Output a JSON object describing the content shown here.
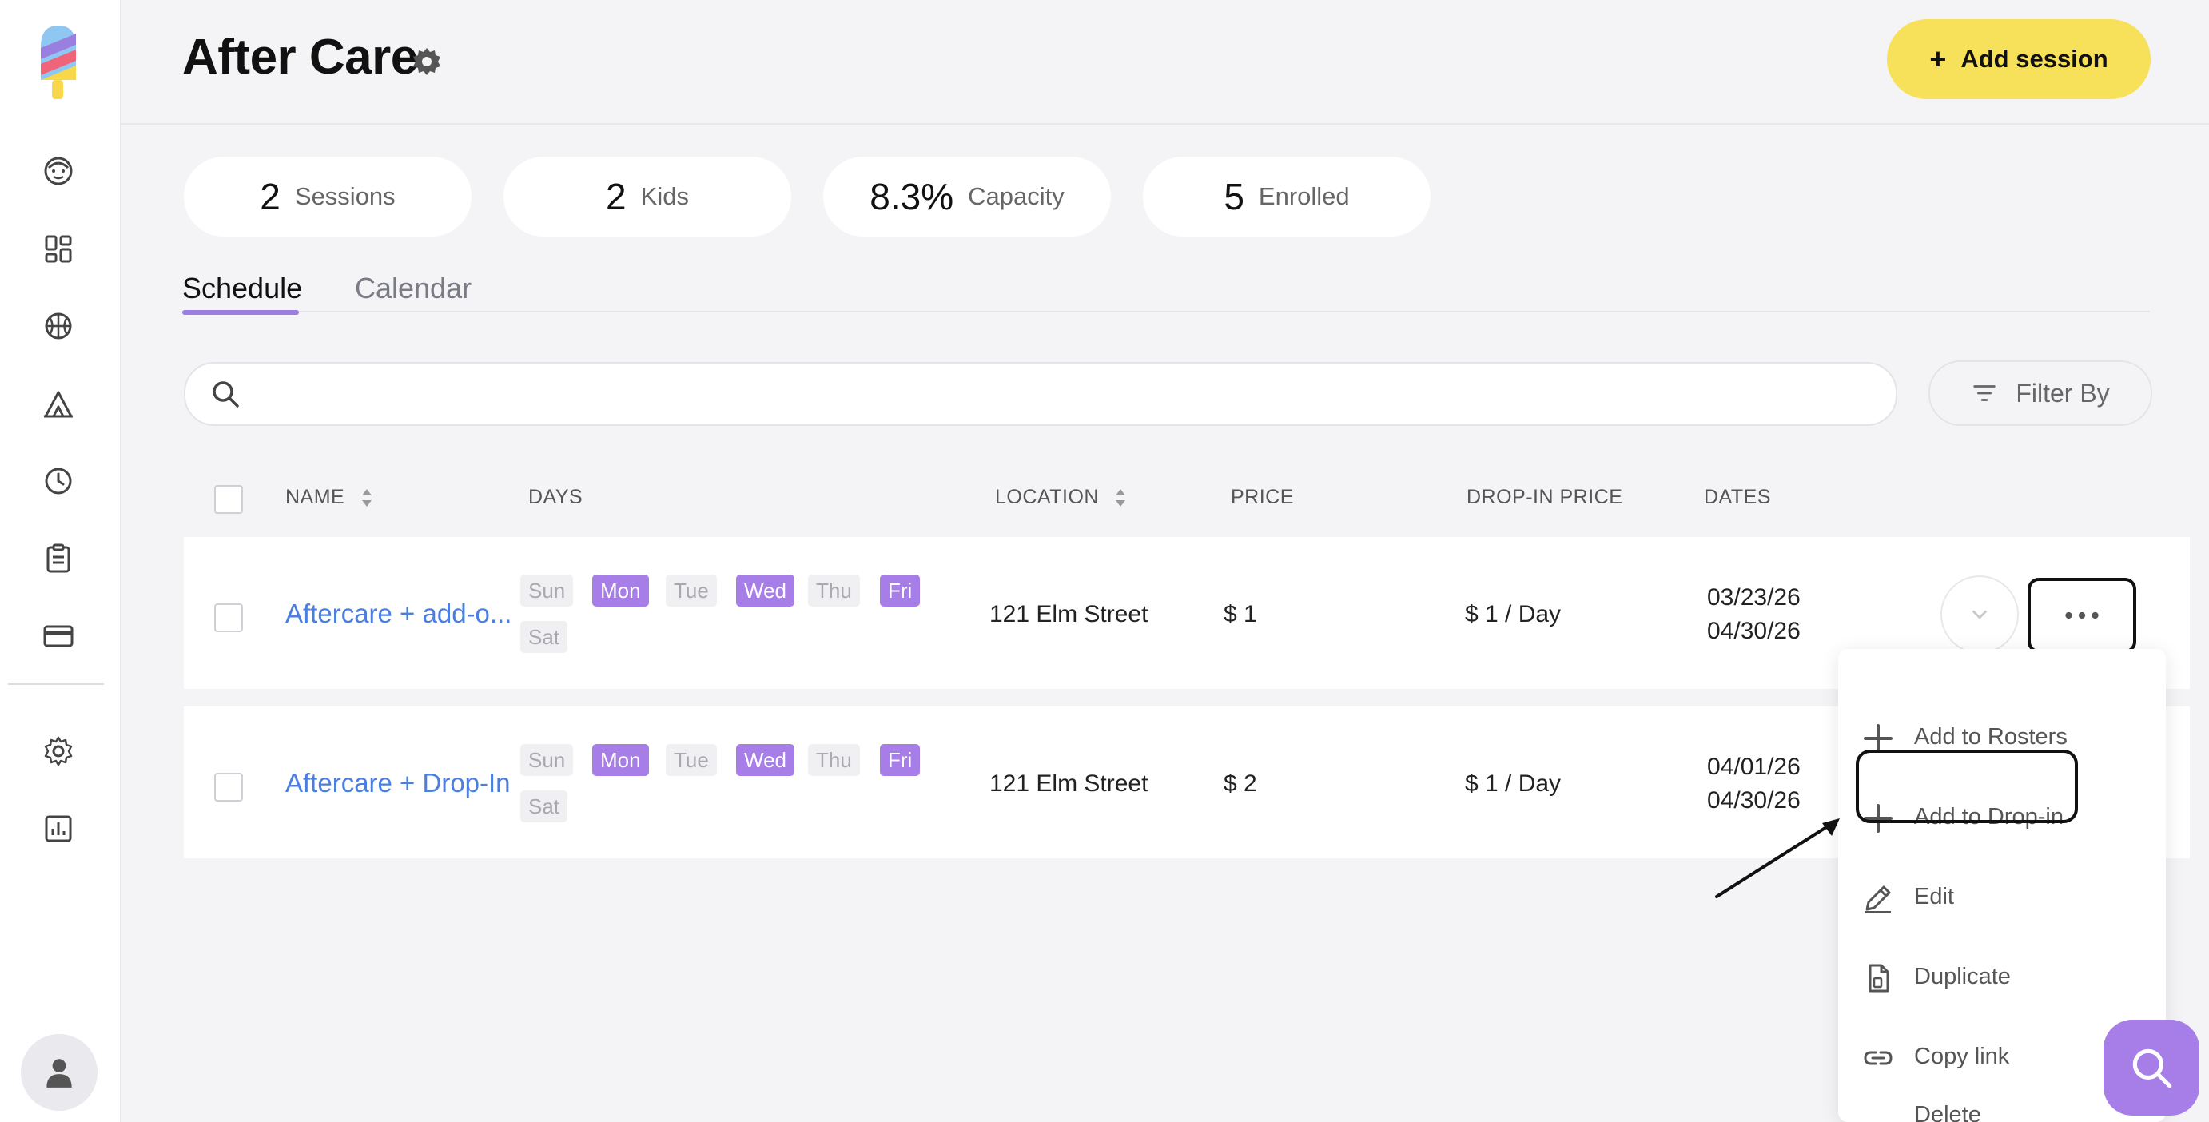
{
  "header": {
    "title": "After Care",
    "add_session_icon": "+",
    "add_session_label": "Add session"
  },
  "stats": [
    {
      "value": "2",
      "label": "Sessions"
    },
    {
      "value": "2",
      "label": "Kids"
    },
    {
      "value": "8.3%",
      "label": "Capacity"
    },
    {
      "value": "5",
      "label": "Enrolled"
    }
  ],
  "tabs": [
    {
      "label": "Schedule",
      "active": true
    },
    {
      "label": "Calendar",
      "active": false
    }
  ],
  "search": {
    "placeholder": "",
    "value": ""
  },
  "filter": {
    "label": "Filter By"
  },
  "table": {
    "columns": [
      "NAME",
      "DAYS",
      "LOCATION",
      "PRICE",
      "DROP-IN PRICE",
      "DATES"
    ],
    "rows": [
      {
        "name": "Aftercare + add-o...",
        "days": [
          {
            "label": "Sun",
            "active": false
          },
          {
            "label": "Mon",
            "active": true
          },
          {
            "label": "Tue",
            "active": false
          },
          {
            "label": "Wed",
            "active": true
          },
          {
            "label": "Thu",
            "active": false
          },
          {
            "label": "Fri",
            "active": true
          },
          {
            "label": "Sat",
            "active": false
          }
        ],
        "location": "121 Elm Street",
        "price": "$ 1",
        "dropin_price": "$ 1 / Day",
        "date_start": "03/23/26",
        "date_end": "04/30/26"
      },
      {
        "name": "Aftercare + Drop-In",
        "days": [
          {
            "label": "Sun",
            "active": false
          },
          {
            "label": "Mon",
            "active": true
          },
          {
            "label": "Tue",
            "active": false
          },
          {
            "label": "Wed",
            "active": true
          },
          {
            "label": "Thu",
            "active": false
          },
          {
            "label": "Fri",
            "active": true
          },
          {
            "label": "Sat",
            "active": false
          }
        ],
        "location": "121 Elm Street",
        "price": "$ 2",
        "dropin_price": "$ 1 / Day",
        "date_start": "04/01/26",
        "date_end": "04/30/26"
      }
    ]
  },
  "menu": {
    "items": [
      {
        "label": "Add to Rosters",
        "icon": "plus-icon"
      },
      {
        "label": "Add to Drop-in",
        "icon": "plus-icon"
      },
      {
        "label": "Edit",
        "icon": "pencil-icon"
      },
      {
        "label": "Duplicate",
        "icon": "duplicate-icon"
      },
      {
        "label": "Copy link",
        "icon": "link-icon"
      },
      {
        "label": "Delete",
        "icon": "trash-icon"
      }
    ]
  },
  "colors": {
    "accent_purple": "#a77de8",
    "add_button_yellow": "#f7e05a",
    "link_blue": "#4a7fe0",
    "background": "#f4f4f6"
  },
  "sidebar": {
    "icons": [
      "logo-icon",
      "kid-face-icon",
      "dashboard-icon",
      "sports-ball-icon",
      "tent-icon",
      "clock-icon",
      "clipboard-icon",
      "credit-card-icon",
      "gear-icon",
      "report-icon",
      "user-avatar-icon"
    ]
  }
}
